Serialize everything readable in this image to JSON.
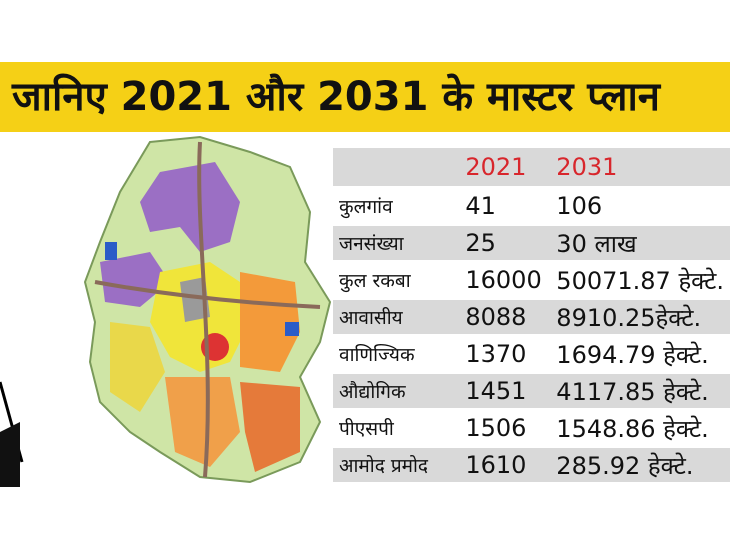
{
  "header": {
    "title": "जानिए 2021 और 2031 के मास्टर प्लान"
  },
  "table": {
    "columns": [
      "2021",
      "2031"
    ],
    "rows": [
      [
        "कुलगांव",
        "41",
        "106"
      ],
      [
        "जनसंख्या",
        "25",
        "30 लाख"
      ],
      [
        "कुल रकबा",
        "16000",
        "50071.87 हेक्टे."
      ],
      [
        "आवासीय",
        "8088",
        "8910.25हेक्टे."
      ],
      [
        "वाणिज्यिक",
        "1370",
        "1694.79 हेक्टे."
      ],
      [
        "औद्योगिक",
        "1451",
        "4117.85 हेक्टे."
      ],
      [
        "पीएसपी",
        "1506",
        "1548.86 हेक्टे."
      ],
      [
        "आमोद प्रमोद",
        "1610",
        "285.92 हेक्टे."
      ]
    ]
  }
}
